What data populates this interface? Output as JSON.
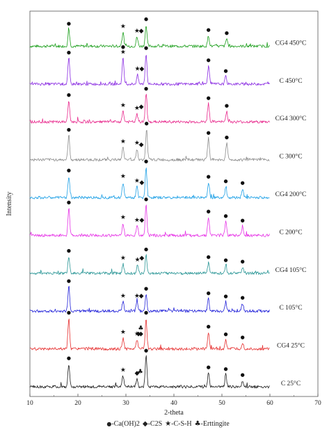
{
  "chart_data": {
    "type": "line",
    "xlabel": "2-theta",
    "ylabel": "Intensity",
    "xlim": [
      10,
      70
    ],
    "x_ticks": [
      10,
      20,
      30,
      40,
      50,
      60,
      70
    ],
    "grid": false,
    "legend": {
      "placement": "bottom",
      "entries": [
        {
          "symbol": "●",
          "label": "-Ca(OH)2"
        },
        {
          "symbol": "◆",
          "label": "-C2S"
        },
        {
          "symbol": "★",
          "label": "-C-S-H"
        },
        {
          "symbol": "♣",
          "label": "-Erttingite"
        }
      ]
    },
    "series": [
      {
        "name": "CG4 450°C",
        "color": "#1a9e1a",
        "markers": [
          {
            "x": 18.1,
            "s": "●"
          },
          {
            "x": 29.4,
            "s": "★"
          },
          {
            "x": 32.3,
            "s": "★"
          },
          {
            "x": 33.2,
            "s": "◆"
          },
          {
            "x": 34.2,
            "s": "●"
          },
          {
            "x": 47.2,
            "s": "●"
          },
          {
            "x": 51.0,
            "s": "●"
          }
        ],
        "peaks": [
          {
            "x": 18.1,
            "h": 0.55
          },
          {
            "x": 29.4,
            "h": 0.45
          },
          {
            "x": 32.3,
            "h": 0.3
          },
          {
            "x": 34.2,
            "h": 0.7
          },
          {
            "x": 47.2,
            "h": 0.35
          },
          {
            "x": 51.0,
            "h": 0.25
          }
        ]
      },
      {
        "name": "C 450°C",
        "color": "#8a2be2",
        "markers": [
          {
            "x": 18.1,
            "s": "●"
          },
          {
            "x": 29.4,
            "s": "★"
          },
          {
            "x": 29.4,
            "s": "●"
          },
          {
            "x": 32.4,
            "s": "★"
          },
          {
            "x": 33.3,
            "s": "◆"
          },
          {
            "x": 34.2,
            "s": "●"
          },
          {
            "x": 47.2,
            "s": "●"
          },
          {
            "x": 50.8,
            "s": "●"
          }
        ],
        "peaks": [
          {
            "x": 18.1,
            "h": 0.85
          },
          {
            "x": 29.4,
            "h": 0.85
          },
          {
            "x": 32.4,
            "h": 0.3
          },
          {
            "x": 34.2,
            "h": 1.0
          },
          {
            "x": 47.2,
            "h": 0.6
          },
          {
            "x": 50.8,
            "h": 0.25
          }
        ]
      },
      {
        "name": "CG4 300°C",
        "color": "#e8288c",
        "markers": [
          {
            "x": 18.1,
            "s": "●"
          },
          {
            "x": 29.4,
            "s": "★"
          },
          {
            "x": 32.3,
            "s": "★"
          },
          {
            "x": 33.2,
            "s": "◆"
          },
          {
            "x": 34.2,
            "s": "●"
          },
          {
            "x": 47.2,
            "s": "●"
          },
          {
            "x": 51.0,
            "s": "●"
          }
        ],
        "peaks": [
          {
            "x": 18.1,
            "h": 0.7
          },
          {
            "x": 29.4,
            "h": 0.35
          },
          {
            "x": 32.3,
            "h": 0.25
          },
          {
            "x": 34.2,
            "h": 0.9
          },
          {
            "x": 47.2,
            "h": 0.6
          },
          {
            "x": 51.0,
            "h": 0.35
          }
        ]
      },
      {
        "name": "C 300°C",
        "color": "#8c8c8c",
        "markers": [
          {
            "x": 18.1,
            "s": "●"
          },
          {
            "x": 29.4,
            "s": "★"
          },
          {
            "x": 32.3,
            "s": "★"
          },
          {
            "x": 33.2,
            "s": "◆"
          },
          {
            "x": 34.3,
            "s": "●"
          },
          {
            "x": 47.2,
            "s": "●"
          },
          {
            "x": 51.0,
            "s": "●"
          }
        ],
        "peaks": [
          {
            "x": 18.1,
            "h": 0.8
          },
          {
            "x": 29.4,
            "h": 0.4
          },
          {
            "x": 32.3,
            "h": 0.35
          },
          {
            "x": 34.3,
            "h": 1.0
          },
          {
            "x": 47.2,
            "h": 0.7
          },
          {
            "x": 51.0,
            "h": 0.55
          }
        ]
      },
      {
        "name": "CG4 200°C",
        "color": "#1ea0e6",
        "markers": [
          {
            "x": 18.1,
            "s": "●"
          },
          {
            "x": 29.4,
            "s": "★"
          },
          {
            "x": 32.3,
            "s": "★"
          },
          {
            "x": 33.3,
            "s": "◆"
          },
          {
            "x": 34.2,
            "s": "●"
          },
          {
            "x": 47.2,
            "s": "●"
          },
          {
            "x": 50.8,
            "s": "●"
          },
          {
            "x": 54.3,
            "s": "●"
          }
        ],
        "peaks": [
          {
            "x": 18.1,
            "h": 0.7
          },
          {
            "x": 29.4,
            "h": 0.5
          },
          {
            "x": 32.3,
            "h": 0.35
          },
          {
            "x": 34.2,
            "h": 1.0
          },
          {
            "x": 47.2,
            "h": 0.5
          },
          {
            "x": 50.8,
            "h": 0.35
          },
          {
            "x": 54.3,
            "h": 0.3
          }
        ]
      },
      {
        "name": "C 200°C",
        "color": "#e632e6",
        "markers": [
          {
            "x": 18.1,
            "s": "●"
          },
          {
            "x": 29.4,
            "s": "★"
          },
          {
            "x": 32.3,
            "s": "★"
          },
          {
            "x": 33.3,
            "s": "◆"
          },
          {
            "x": 34.2,
            "s": "●"
          },
          {
            "x": 47.2,
            "s": "●"
          },
          {
            "x": 50.8,
            "s": "●"
          },
          {
            "x": 54.3,
            "s": "●"
          }
        ],
        "peaks": [
          {
            "x": 18.1,
            "h": 0.9
          },
          {
            "x": 29.4,
            "h": 0.4
          },
          {
            "x": 32.3,
            "h": 0.3
          },
          {
            "x": 34.2,
            "h": 1.0
          },
          {
            "x": 47.2,
            "h": 0.6
          },
          {
            "x": 50.8,
            "h": 0.45
          },
          {
            "x": 54.3,
            "h": 0.3
          }
        ]
      },
      {
        "name": "CG4 105°C",
        "color": "#2a9696",
        "markers": [
          {
            "x": 18.1,
            "s": "●"
          },
          {
            "x": 29.4,
            "s": "★"
          },
          {
            "x": 32.4,
            "s": "★"
          },
          {
            "x": 33.3,
            "s": "◆"
          },
          {
            "x": 34.2,
            "s": "●"
          },
          {
            "x": 47.2,
            "s": "●"
          },
          {
            "x": 50.8,
            "s": "●"
          },
          {
            "x": 54.3,
            "s": "●"
          }
        ],
        "peaks": [
          {
            "x": 18.1,
            "h": 0.55
          },
          {
            "x": 29.4,
            "h": 0.3
          },
          {
            "x": 32.4,
            "h": 0.25
          },
          {
            "x": 34.2,
            "h": 0.6
          },
          {
            "x": 47.2,
            "h": 0.35
          },
          {
            "x": 50.8,
            "h": 0.25
          },
          {
            "x": 54.3,
            "h": 0.2
          }
        ]
      },
      {
        "name": "C 105°C",
        "color": "#2121d9",
        "markers": [
          {
            "x": 18.1,
            "s": "●"
          },
          {
            "x": 29.4,
            "s": "★"
          },
          {
            "x": 32.3,
            "s": "★"
          },
          {
            "x": 33.2,
            "s": "◆"
          },
          {
            "x": 34.2,
            "s": "●"
          },
          {
            "x": 47.2,
            "s": "●"
          },
          {
            "x": 50.8,
            "s": "●"
          },
          {
            "x": 54.3,
            "s": "●"
          }
        ],
        "peaks": [
          {
            "x": 18.1,
            "h": 0.8
          },
          {
            "x": 29.4,
            "h": 0.3
          },
          {
            "x": 32.3,
            "h": 0.3
          },
          {
            "x": 34.2,
            "h": 0.55
          },
          {
            "x": 47.2,
            "h": 0.4
          },
          {
            "x": 50.8,
            "h": 0.3
          },
          {
            "x": 54.3,
            "h": 0.25
          }
        ]
      },
      {
        "name": "CG4 25°C",
        "color": "#e62e2e",
        "markers": [
          {
            "x": 18.1,
            "s": "●"
          },
          {
            "x": 29.4,
            "s": "★"
          },
          {
            "x": 32.3,
            "s": "★"
          },
          {
            "x": 32.6,
            "s": "◆"
          },
          {
            "x": 33.1,
            "s": "◆"
          },
          {
            "x": 33.1,
            "s": "♣"
          },
          {
            "x": 34.2,
            "s": "●"
          },
          {
            "x": 47.2,
            "s": "●"
          },
          {
            "x": 50.8,
            "s": "●"
          },
          {
            "x": 54.3,
            "s": "●"
          }
        ],
        "peaks": [
          {
            "x": 18.1,
            "h": 1.0
          },
          {
            "x": 29.4,
            "h": 0.35
          },
          {
            "x": 32.3,
            "h": 0.3
          },
          {
            "x": 34.2,
            "h": 1.0
          },
          {
            "x": 47.2,
            "h": 0.55
          },
          {
            "x": 50.8,
            "h": 0.3
          },
          {
            "x": 54.3,
            "h": 0.2
          }
        ]
      },
      {
        "name": "C 25°C",
        "color": "#1e1e1e",
        "markers": [
          {
            "x": 18.1,
            "s": "●"
          },
          {
            "x": 29.4,
            "s": "★"
          },
          {
            "x": 32.3,
            "s": "◆"
          },
          {
            "x": 33.0,
            "s": "♣"
          },
          {
            "x": 34.2,
            "s": "●"
          },
          {
            "x": 47.2,
            "s": "●"
          },
          {
            "x": 50.8,
            "s": "●"
          },
          {
            "x": 54.3,
            "s": "●"
          }
        ],
        "peaks": [
          {
            "x": 18.1,
            "h": 0.75
          },
          {
            "x": 29.4,
            "h": 0.35
          },
          {
            "x": 32.3,
            "h": 0.25
          },
          {
            "x": 34.2,
            "h": 1.0
          },
          {
            "x": 47.2,
            "h": 0.45
          },
          {
            "x": 50.8,
            "h": 0.4
          },
          {
            "x": 54.3,
            "h": 0.2
          }
        ]
      }
    ]
  }
}
